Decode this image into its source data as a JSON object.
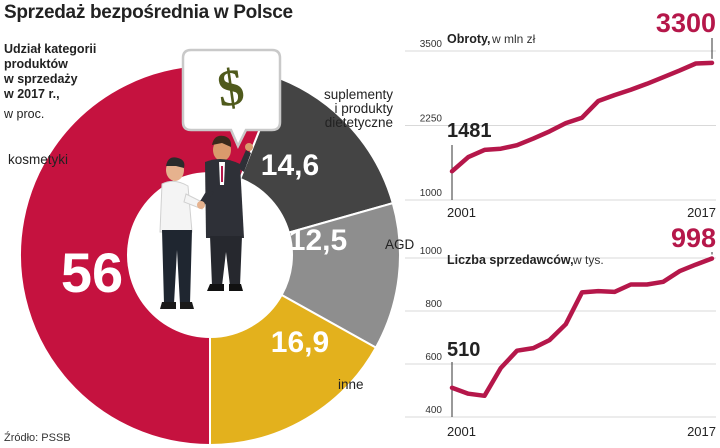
{
  "header": {
    "title": "Sprzedaż bezpośrednia w Polsce"
  },
  "donut": {
    "title": "Udział kategorii produktów w sprzedaży w 2017 r.,",
    "title_lines": [
      "Udział kategorii",
      "produktów",
      "w sprzedaży",
      "w 2017 r.,"
    ],
    "subtitle": "w proc."
  },
  "source": "Źródło: PSSB",
  "colors": {
    "kosmetyki": "#c5123f",
    "suplementy": "#444444",
    "agd": "#8e8e8e",
    "inne": "#e3b11d",
    "line": "#b5174a"
  },
  "icons": [
    "dollar-sign-icon",
    "handshake-people-icon"
  ],
  "chart_data": [
    {
      "type": "pie",
      "title": "Udział kategorii produktów w sprzedaży w 2017 r., w proc.",
      "categories": [
        "kosmetyki",
        "suplementy i produkty dietetyczne",
        "AGD",
        "inne"
      ],
      "values": [
        56,
        14.6,
        12.5,
        16.9
      ],
      "value_labels": [
        "56",
        "14,6",
        "12,5",
        "16,9"
      ],
      "category_label_lines": [
        [
          "kosmetyki"
        ],
        [
          "suplementy",
          "i produkty",
          "dietetyczne"
        ],
        [
          "AGD"
        ],
        [
          "inne"
        ]
      ]
    },
    {
      "type": "line",
      "title": "Obroty,",
      "subtitle": "w mln zł",
      "x": [
        2001,
        2002,
        2003,
        2004,
        2005,
        2006,
        2007,
        2008,
        2009,
        2010,
        2011,
        2012,
        2013,
        2014,
        2015,
        2016,
        2017
      ],
      "y": [
        1481,
        1720,
        1840,
        1860,
        1920,
        2030,
        2150,
        2290,
        2380,
        2660,
        2760,
        2850,
        2950,
        3060,
        3170,
        3290,
        3300
      ],
      "ylim": [
        1000,
        3600
      ],
      "yticks": [
        1000,
        2250,
        3500
      ],
      "xtick_labels": [
        "2001",
        "2017"
      ],
      "start_label": "1481",
      "end_label": "3300",
      "grid": true
    },
    {
      "type": "line",
      "title": "Liczba sprzedawców,",
      "subtitle": "w tys.",
      "x": [
        2001,
        2002,
        2003,
        2004,
        2005,
        2006,
        2007,
        2008,
        2009,
        2010,
        2011,
        2012,
        2013,
        2014,
        2015,
        2016,
        2017
      ],
      "y": [
        510,
        488,
        480,
        585,
        650,
        660,
        690,
        750,
        870,
        875,
        872,
        900,
        900,
        910,
        950,
        975,
        998
      ],
      "ylim": [
        400,
        1030
      ],
      "yticks": [
        400,
        600,
        800,
        1000
      ],
      "xtick_labels": [
        "2001",
        "2017"
      ],
      "start_label": "510",
      "end_label": "998",
      "grid": true
    }
  ]
}
